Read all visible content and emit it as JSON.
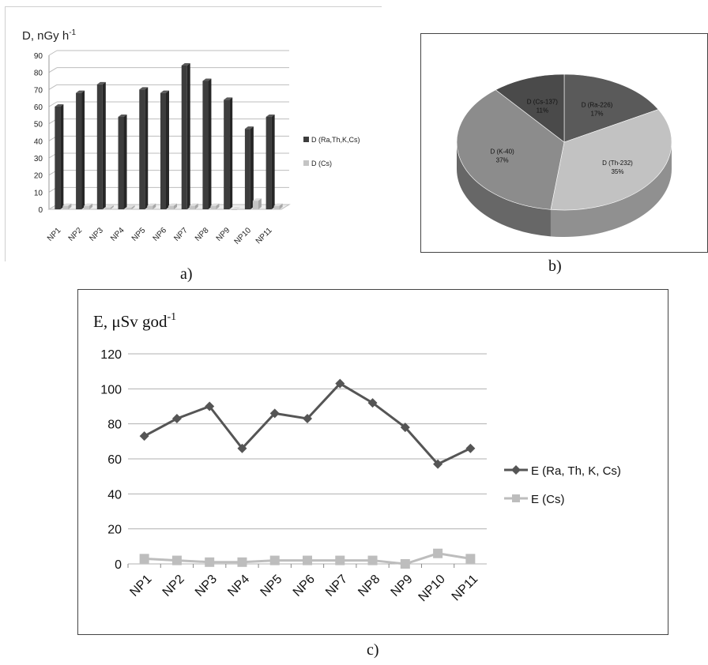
{
  "captions": {
    "a": "a)",
    "b": "b)",
    "c": "c)"
  },
  "chart_data": [
    {
      "panel": "a",
      "type": "bar",
      "title": "D, nGy h",
      "title_sup": "-1",
      "categories": [
        "NP1",
        "NP2",
        "NP3",
        "NP4",
        "NP5",
        "NP6",
        "NP7",
        "NP8",
        "NP9",
        "NP10",
        "NP11"
      ],
      "series": [
        {
          "name": "D (Ra,Th,K,Cs)",
          "color": "#3d3d3d",
          "values": [
            60,
            68,
            73,
            54,
            70,
            68,
            84,
            75,
            64,
            47,
            54
          ]
        },
        {
          "name": "D (Cs)",
          "color": "#c4c4c4",
          "values": [
            2,
            2,
            1,
            1,
            2,
            2,
            2,
            2,
            0,
            5,
            2
          ]
        }
      ],
      "ylim": [
        0,
        90
      ],
      "yticks": [
        0,
        10,
        20,
        30,
        40,
        50,
        60,
        70,
        80,
        90
      ],
      "grid": true,
      "legend": "right"
    },
    {
      "panel": "b",
      "type": "pie",
      "slices": [
        {
          "label": "D (Ra-226)",
          "pct_label": "17%",
          "value": 17,
          "color": "#5a5a5a",
          "side": "#3e3e3e"
        },
        {
          "label": "D (Th-232)",
          "pct_label": "35%",
          "value": 35,
          "color": "#c2c2c2",
          "side": "#909090"
        },
        {
          "label": "D (K-40)",
          "pct_label": "37%",
          "value": 37,
          "color": "#8c8c8c",
          "side": "#676767"
        },
        {
          "label": "D (Cs-137)",
          "pct_label": "11%",
          "value": 11,
          "color": "#4a4a4a",
          "side": "#333333"
        }
      ]
    },
    {
      "panel": "c",
      "type": "line",
      "title": "E, μSv god",
      "title_sup": "-1",
      "categories": [
        "NP1",
        "NP2",
        "NP3",
        "NP4",
        "NP5",
        "NP6",
        "NP7",
        "NP8",
        "NP9",
        "NP10",
        "NP11"
      ],
      "series": [
        {
          "name": "E (Ra, Th, K, Cs)",
          "color": "#555555",
          "marker": "diamond",
          "values": [
            73,
            83,
            90,
            66,
            86,
            83,
            103,
            92,
            78,
            57,
            66
          ]
        },
        {
          "name": "E (Cs)",
          "color": "#bdbdbd",
          "marker": "square",
          "values": [
            3,
            2,
            1,
            1,
            2,
            2,
            2,
            2,
            0,
            6,
            3
          ]
        }
      ],
      "ylim": [
        0,
        120
      ],
      "yticks": [
        0,
        20,
        40,
        60,
        80,
        100,
        120
      ],
      "grid": true,
      "legend": "right"
    }
  ]
}
